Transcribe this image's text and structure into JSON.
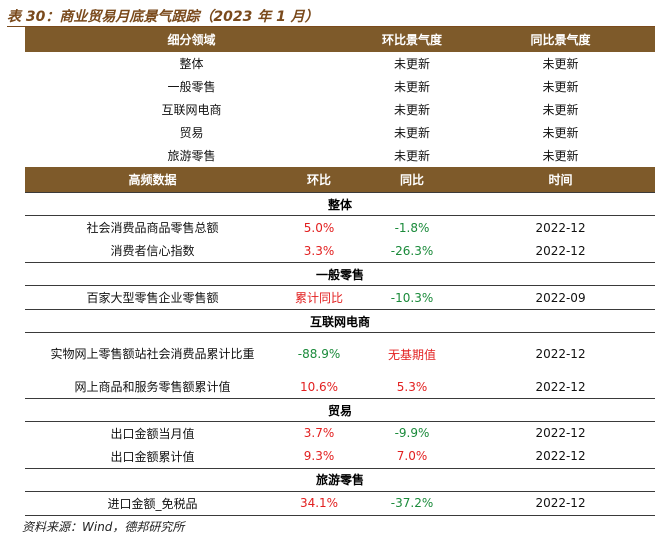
{
  "title": "表 30：商业贸易月底景气跟踪（2023 年 1 月）",
  "top_table": {
    "headers": [
      "细分领域",
      "环比景气度",
      "同比景气度"
    ],
    "rows": [
      [
        "整体",
        "未更新",
        "未更新"
      ],
      [
        "一般零售",
        "未更新",
        "未更新"
      ],
      [
        "互联网电商",
        "未更新",
        "未更新"
      ],
      [
        "贸易",
        "未更新",
        "未更新"
      ],
      [
        "旅游零售",
        "未更新",
        "未更新"
      ]
    ]
  },
  "freq_table": {
    "headers": [
      "高频数据",
      "环比",
      "同比",
      "时间"
    ],
    "sections": [
      {
        "name": "整体",
        "rows": [
          {
            "item": "社会消费品商品零售总额",
            "mom": "5.0%",
            "yoy": "-1.8%",
            "time": "2022-12"
          },
          {
            "item": "消费者信心指数",
            "mom": "3.3%",
            "yoy": "-26.3%",
            "time": "2022-12"
          }
        ]
      },
      {
        "name": "一般零售",
        "rows": [
          {
            "item": "百家大型零售企业零售额",
            "mom": "累计同比",
            "yoy": "-10.3%",
            "time": "2022-09"
          }
        ]
      },
      {
        "name": "互联网电商",
        "rows": [
          {
            "item": "实物网上零售额站社会消费品累计比重",
            "mom": "-88.9%",
            "yoy": "无基期值",
            "time": "2022-12"
          },
          {
            "item": "网上商品和服务零售额累计值",
            "mom": "10.6%",
            "yoy": "5.3%",
            "time": "2022-12"
          }
        ]
      },
      {
        "name": "贸易",
        "rows": [
          {
            "item": "出口金额当月值",
            "mom": "3.7%",
            "yoy": "-9.9%",
            "time": "2022-12"
          },
          {
            "item": "出口金额累计值",
            "mom": "9.3%",
            "yoy": "7.0%",
            "time": "2022-12"
          }
        ]
      },
      {
        "name": "旅游零售",
        "rows": [
          {
            "item": "进口金额_免税品",
            "mom": "34.1%",
            "yoy": "-37.2%",
            "time": "2022-12"
          }
        ]
      }
    ]
  },
  "colors": {
    "header_bg": "#7e5a2a",
    "positive": "#e21f1f",
    "negative": "#1a8a3a"
  },
  "source": "资料来源：Wind，德邦研究所"
}
